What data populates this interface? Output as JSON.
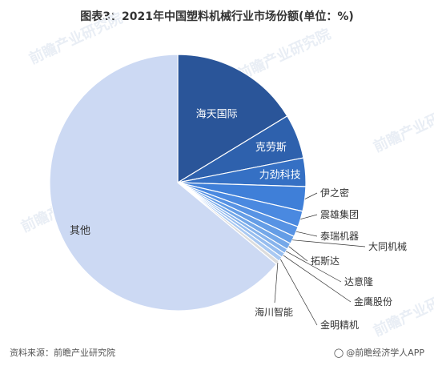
{
  "title": "图表3：2021年中国塑料机械行业市场份额(单位：%)",
  "source": "资料来源：前瞻产业研究院",
  "brand": "@前瞻经济学人APP",
  "watermark": "前瞻产业研究院",
  "chart_data": {
    "type": "pie",
    "title": "图表3：2021年中国塑料机械行业市场份额(单位：%)",
    "unit": "%",
    "slices": [
      {
        "name": "海天国际",
        "value": 16.3,
        "color": "#2a5599"
      },
      {
        "name": "克劳斯",
        "value": 5.6,
        "color": "#2e61ad"
      },
      {
        "name": "力劲科技",
        "value": 3.6,
        "color": "#3570c4"
      },
      {
        "name": "伊之密",
        "value": 3.1,
        "color": "#3f7fd8"
      },
      {
        "name": "震雄集团",
        "value": 2.0,
        "color": "#4a89e0"
      },
      {
        "name": "泰瑞机器",
        "value": 1.3,
        "color": "#5793e4"
      },
      {
        "name": "大同机械",
        "value": 1.0,
        "color": "#649de6"
      },
      {
        "name": "拓斯达",
        "value": 0.8,
        "color": "#74a8e9"
      },
      {
        "name": "达意隆",
        "value": 0.6,
        "color": "#86b3ec"
      },
      {
        "name": "金鹰股份",
        "value": 0.6,
        "color": "#96bdef"
      },
      {
        "name": "金明精机",
        "value": 0.6,
        "color": "#a9c9f2"
      },
      {
        "name": "海川智能",
        "value": 0.5,
        "color": "#dcdcdc"
      },
      {
        "name": "其他",
        "value": 64.0,
        "color": "#ccd9f3"
      }
    ]
  }
}
